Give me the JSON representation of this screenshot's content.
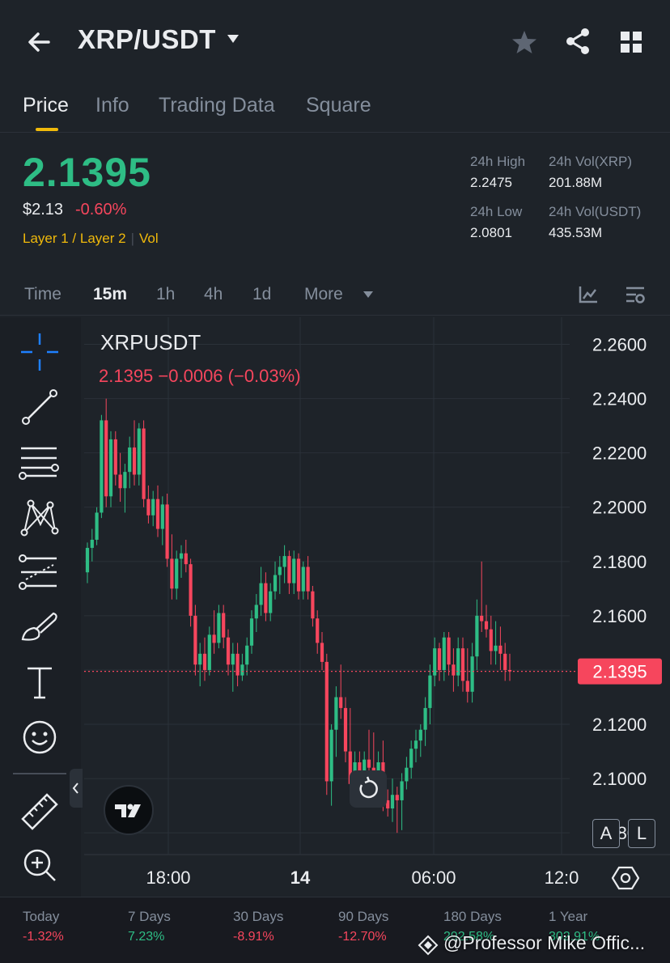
{
  "header": {
    "title": "XRP/USDT",
    "icons": [
      "back-arrow-icon",
      "caret-down-icon",
      "star-icon",
      "share-icon",
      "grid-icon"
    ]
  },
  "tabs": [
    {
      "label": "Price",
      "active": true
    },
    {
      "label": "Info",
      "active": false
    },
    {
      "label": "Trading Data",
      "active": false
    },
    {
      "label": "Square",
      "active": false
    }
  ],
  "ticker": {
    "last_price": "2.1395",
    "usd_price": "$2.13",
    "change_pct": "-0.60%",
    "tag1": "Layer 1 / Layer 2",
    "tag2": "Vol",
    "high_label": "24h High",
    "high_value": "2.2475",
    "low_label": "24h Low",
    "low_value": "2.0801",
    "vol_base_label": "24h Vol(XRP)",
    "vol_base_value": "201.88M",
    "vol_quote_label": "24h Vol(USDT)",
    "vol_quote_value": "435.53M"
  },
  "intervals": {
    "time": "Time",
    "m15": "15m",
    "h1": "1h",
    "h4": "4h",
    "d1": "1d",
    "more": "More",
    "selected": "15m"
  },
  "chart": {
    "symbol": "XRPUSDT",
    "ohlc_line": "2.1395  −0.0006 (−0.03%)",
    "current_price_tag": "2.1395",
    "scale_a": "A",
    "scale_l": "L",
    "colors": {
      "up": "#2ebd85",
      "down": "#f6465d",
      "grid": "#2b3139"
    }
  },
  "chart_data": {
    "type": "candlestick",
    "title": "XRPUSDT",
    "interval": "15m",
    "y_ticks": [
      "2.2600",
      "2.2400",
      "2.2200",
      "2.2000",
      "2.1800",
      "2.1600",
      "2.1400",
      "2.1200",
      "2.1000",
      "2.0800"
    ],
    "ylim": [
      2.072,
      2.27
    ],
    "x_ticks": [
      "18:00",
      "14",
      "06:00",
      "12:0"
    ],
    "last_price": 2.1395,
    "candles": [
      [
        2.176,
        2.187,
        2.172,
        2.185
      ],
      [
        2.185,
        2.192,
        2.18,
        2.188
      ],
      [
        2.188,
        2.2,
        2.186,
        2.198
      ],
      [
        2.198,
        2.234,
        2.196,
        2.232
      ],
      [
        2.232,
        2.24,
        2.2,
        2.204
      ],
      [
        2.204,
        2.228,
        2.2,
        2.225
      ],
      [
        2.225,
        2.228,
        2.208,
        2.212
      ],
      [
        2.212,
        2.22,
        2.202,
        2.207
      ],
      [
        2.207,
        2.216,
        2.198,
        2.213
      ],
      [
        2.213,
        2.226,
        2.207,
        2.222
      ],
      [
        2.222,
        2.232,
        2.208,
        2.212
      ],
      [
        2.212,
        2.231,
        2.208,
        2.229
      ],
      [
        2.229,
        2.232,
        2.2,
        2.203
      ],
      [
        2.203,
        2.208,
        2.194,
        2.197
      ],
      [
        2.197,
        2.206,
        2.193,
        2.203
      ],
      [
        2.203,
        2.208,
        2.189,
        2.192
      ],
      [
        2.192,
        2.204,
        2.186,
        2.201
      ],
      [
        2.201,
        2.205,
        2.178,
        2.181
      ],
      [
        2.181,
        2.19,
        2.166,
        2.17
      ],
      [
        2.17,
        2.184,
        2.166,
        2.181
      ],
      [
        2.181,
        2.186,
        2.174,
        2.183
      ],
      [
        2.183,
        2.188,
        2.176,
        2.179
      ],
      [
        2.179,
        2.181,
        2.156,
        2.16
      ],
      [
        2.16,
        2.164,
        2.138,
        2.142
      ],
      [
        2.142,
        2.15,
        2.134,
        2.146
      ],
      [
        2.146,
        2.152,
        2.136,
        2.14
      ],
      [
        2.14,
        2.156,
        2.138,
        2.153
      ],
      [
        2.153,
        2.162,
        2.146,
        2.15
      ],
      [
        2.15,
        2.164,
        2.148,
        2.161
      ],
      [
        2.161,
        2.164,
        2.148,
        2.152
      ],
      [
        2.152,
        2.155,
        2.138,
        2.142
      ],
      [
        2.142,
        2.15,
        2.132,
        2.146
      ],
      [
        2.146,
        2.15,
        2.134,
        2.138
      ],
      [
        2.138,
        2.146,
        2.136,
        2.142
      ],
      [
        2.142,
        2.152,
        2.138,
        2.149
      ],
      [
        2.149,
        2.162,
        2.146,
        2.159
      ],
      [
        2.159,
        2.168,
        2.154,
        2.164
      ],
      [
        2.164,
        2.178,
        2.16,
        2.172
      ],
      [
        2.172,
        2.176,
        2.158,
        2.161
      ],
      [
        2.161,
        2.172,
        2.158,
        2.169
      ],
      [
        2.169,
        2.18,
        2.166,
        2.175
      ],
      [
        2.175,
        2.182,
        2.168,
        2.178
      ],
      [
        2.178,
        2.186,
        2.172,
        2.182
      ],
      [
        2.182,
        2.184,
        2.168,
        2.172
      ],
      [
        2.172,
        2.184,
        2.168,
        2.181
      ],
      [
        2.181,
        2.183,
        2.166,
        2.169
      ],
      [
        2.169,
        2.18,
        2.166,
        2.178
      ],
      [
        2.178,
        2.182,
        2.166,
        2.169
      ],
      [
        2.169,
        2.171,
        2.156,
        2.159
      ],
      [
        2.159,
        2.162,
        2.146,
        2.15
      ],
      [
        2.15,
        2.154,
        2.14,
        2.143
      ],
      [
        2.143,
        2.146,
        2.094,
        2.099
      ],
      [
        2.099,
        2.12,
        2.09,
        2.118
      ],
      [
        2.118,
        2.134,
        2.108,
        2.13
      ],
      [
        2.13,
        2.142,
        2.122,
        2.126
      ],
      [
        2.126,
        2.13,
        2.106,
        2.11
      ],
      [
        2.11,
        2.126,
        2.092,
        2.098
      ],
      [
        2.098,
        2.11,
        2.092,
        2.106
      ],
      [
        2.106,
        2.11,
        2.092,
        2.097
      ],
      [
        2.097,
        2.11,
        2.094,
        2.107
      ],
      [
        2.107,
        2.118,
        2.1,
        2.104
      ],
      [
        2.104,
        2.117,
        2.092,
        2.096
      ],
      [
        2.096,
        2.11,
        2.09,
        2.106
      ],
      [
        2.106,
        2.114,
        2.088,
        2.092
      ],
      [
        2.092,
        2.096,
        2.086,
        2.089
      ],
      [
        2.089,
        2.1,
        2.084,
        2.094
      ],
      [
        2.094,
        2.097,
        2.08,
        2.092
      ],
      [
        2.092,
        2.102,
        2.081,
        2.099
      ],
      [
        2.099,
        2.108,
        2.096,
        2.104
      ],
      [
        2.104,
        2.114,
        2.1,
        2.111
      ],
      [
        2.111,
        2.118,
        2.106,
        2.114
      ],
      [
        2.114,
        2.12,
        2.108,
        2.118
      ],
      [
        2.118,
        2.13,
        2.112,
        2.126
      ],
      [
        2.126,
        2.142,
        2.12,
        2.138
      ],
      [
        2.138,
        2.152,
        2.134,
        2.148
      ],
      [
        2.148,
        2.15,
        2.136,
        2.14
      ],
      [
        2.14,
        2.154,
        2.136,
        2.152
      ],
      [
        2.152,
        2.154,
        2.138,
        2.142
      ],
      [
        2.142,
        2.148,
        2.132,
        2.138
      ],
      [
        2.138,
        2.152,
        2.134,
        2.148
      ],
      [
        2.148,
        2.152,
        2.132,
        2.136
      ],
      [
        2.136,
        2.148,
        2.128,
        2.132
      ],
      [
        2.132,
        2.15,
        2.128,
        2.145
      ],
      [
        2.145,
        2.166,
        2.14,
        2.16
      ],
      [
        2.16,
        2.18,
        2.154,
        2.158
      ],
      [
        2.158,
        2.164,
        2.152,
        2.155
      ],
      [
        2.155,
        2.16,
        2.142,
        2.147
      ],
      [
        2.147,
        2.158,
        2.142,
        2.149
      ],
      [
        2.149,
        2.156,
        2.14,
        2.146
      ],
      [
        2.146,
        2.15,
        2.136,
        2.14
      ],
      [
        2.14,
        2.146,
        2.136,
        2.1395
      ]
    ]
  },
  "toolbar": {
    "tools": [
      "crosshair-icon",
      "trend-line-icon",
      "horizontal-lines-icon",
      "pattern-icon",
      "fib-icon",
      "brush-icon",
      "text-icon",
      "emoji-icon",
      "ruler-icon",
      "zoom-in-icon"
    ]
  },
  "performance": [
    {
      "label": "Today",
      "value": "-1.32%",
      "dir": "neg"
    },
    {
      "label": "7 Days",
      "value": "7.23%",
      "dir": "pos"
    },
    {
      "label": "30 Days",
      "value": "-8.91%",
      "dir": "neg"
    },
    {
      "label": "90 Days",
      "value": "-12.70%",
      "dir": "neg"
    },
    {
      "label": "180 Days",
      "value": "292.58%",
      "dir": "pos"
    },
    {
      "label": "1 Year",
      "value": "302.91%",
      "dir": "pos"
    }
  ],
  "watermark": "@Professor Mike Offic..."
}
